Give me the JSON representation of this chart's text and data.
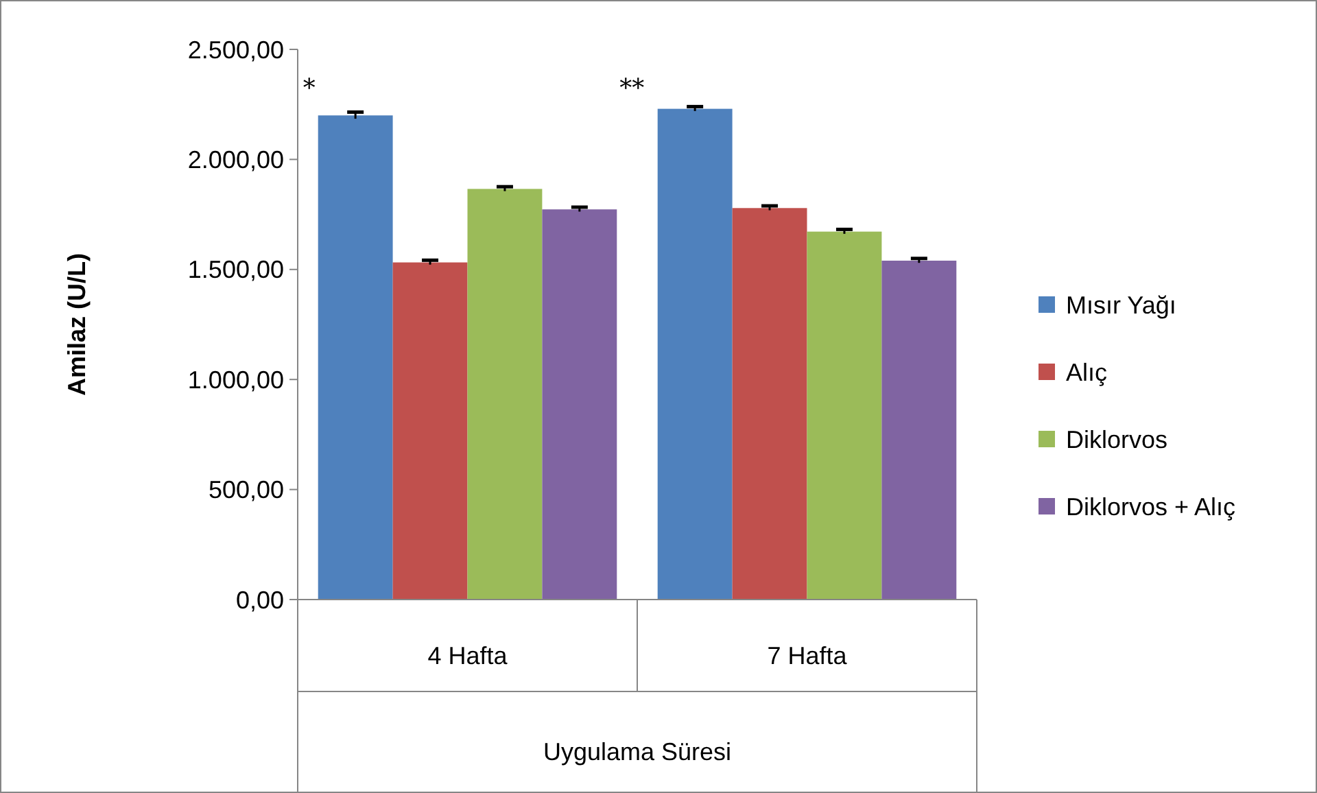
{
  "chart_data": {
    "type": "bar",
    "ylabel": "Amilaz (U/L)",
    "xlabel": "Uygulama Süresi",
    "categories": [
      "4 Hafta",
      "7 Hafta"
    ],
    "series": [
      {
        "name": "Mısır Yağı",
        "color": "#4f81bd",
        "values": [
          2200,
          2230
        ],
        "errors": [
          15,
          10
        ]
      },
      {
        "name": "Alıç",
        "color": "#c0504d",
        "values": [
          1532,
          1779
        ],
        "errors": [
          10,
          10
        ]
      },
      {
        "name": "Diklorvos",
        "color": "#9bbb59",
        "values": [
          1866,
          1672
        ],
        "errors": [
          10,
          10
        ]
      },
      {
        "name": "Diklorvos + Alıç",
        "color": "#8064a2",
        "values": [
          1773,
          1540
        ],
        "errors": [
          10,
          10
        ]
      }
    ],
    "ylim": [
      0,
      2500
    ],
    "yticks": [
      {
        "value": 0,
        "label": "0,00"
      },
      {
        "value": 500,
        "label": "500,00"
      },
      {
        "value": 1000,
        "label": "1.000,00"
      },
      {
        "value": 1500,
        "label": "1.500,00"
      },
      {
        "value": 2000,
        "label": "2.000,00"
      },
      {
        "value": 2500,
        "label": "2.500,00"
      }
    ],
    "annotations": [
      "*",
      "**"
    ],
    "legend": "right"
  }
}
